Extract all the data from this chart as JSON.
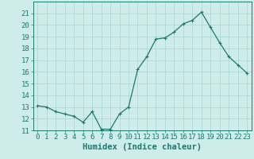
{
  "x": [
    0,
    1,
    2,
    3,
    4,
    5,
    6,
    7,
    8,
    9,
    10,
    11,
    12,
    13,
    14,
    15,
    16,
    17,
    18,
    19,
    20,
    21,
    22,
    23
  ],
  "y": [
    13.1,
    13.0,
    12.6,
    12.4,
    12.2,
    11.7,
    12.6,
    11.1,
    11.1,
    12.4,
    13.0,
    16.2,
    17.3,
    18.8,
    18.9,
    19.4,
    20.1,
    20.4,
    21.1,
    19.8,
    18.5,
    17.3,
    16.6,
    15.9
  ],
  "line_color": "#1a7a6e",
  "marker": "+",
  "marker_size": 3,
  "bg_color": "#ceecea",
  "grid_color": "#aad4d0",
  "xlabel": "Humidex (Indice chaleur)",
  "ylim": [
    11,
    22
  ],
  "xlim": [
    -0.5,
    23.5
  ],
  "yticks": [
    11,
    12,
    13,
    14,
    15,
    16,
    17,
    18,
    19,
    20,
    21
  ],
  "xticks": [
    0,
    1,
    2,
    3,
    4,
    5,
    6,
    7,
    8,
    9,
    10,
    11,
    12,
    13,
    14,
    15,
    16,
    17,
    18,
    19,
    20,
    21,
    22,
    23
  ],
  "tick_fontsize": 6.5,
  "xlabel_fontsize": 7.5,
  "tick_color": "#1a7a6e",
  "axis_label_color": "#1a7a6e",
  "line_width": 0.9
}
